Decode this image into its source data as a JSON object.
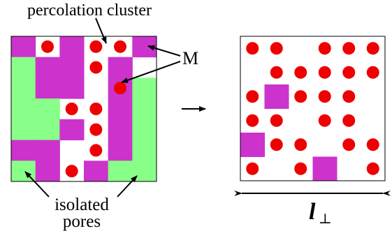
{
  "labels": {
    "top": "percolation cluster",
    "m": "M",
    "bottom_line1": "isolated",
    "bottom_line2": "pores",
    "length_symbol": "l",
    "length_subscript": "⊥"
  },
  "colors": {
    "magenta": "#cc33cc",
    "green": "#88ff88",
    "red": "#ee0000",
    "border": "#000000"
  },
  "left_grid": [
    "MWMWWM",
    "GMMWMW",
    "GMMWMG",
    "GGWWMG",
    "GGMWMG",
    "MMWWMG",
    "GMWMGG"
  ],
  "left_dots": [
    [
      0,
      1
    ],
    [
      0,
      3
    ],
    [
      0,
      4
    ],
    [
      1,
      3
    ],
    [
      2,
      4
    ],
    [
      3,
      2
    ],
    [
      3,
      3
    ],
    [
      4,
      3
    ],
    [
      5,
      3
    ],
    [
      6,
      2
    ]
  ],
  "right_grid": [
    "WWWWWW",
    "WWWWWW",
    "WMWWWW",
    "WWWWWW",
    "MWWWWW",
    "WWWMWW"
  ],
  "right_dots": [
    [
      0,
      0
    ],
    [
      0,
      1
    ],
    [
      0,
      3
    ],
    [
      0,
      4
    ],
    [
      0,
      5
    ],
    [
      1,
      1
    ],
    [
      1,
      2
    ],
    [
      1,
      3
    ],
    [
      1,
      4
    ],
    [
      1,
      5
    ],
    [
      2,
      0
    ],
    [
      2,
      2
    ],
    [
      2,
      3
    ],
    [
      2,
      4
    ],
    [
      3,
      0
    ],
    [
      3,
      1
    ],
    [
      3,
      3
    ],
    [
      3,
      4
    ],
    [
      4,
      1
    ],
    [
      4,
      2
    ],
    [
      4,
      4
    ],
    [
      4,
      5
    ],
    [
      5,
      0
    ],
    [
      5,
      2
    ],
    [
      5,
      5
    ]
  ]
}
